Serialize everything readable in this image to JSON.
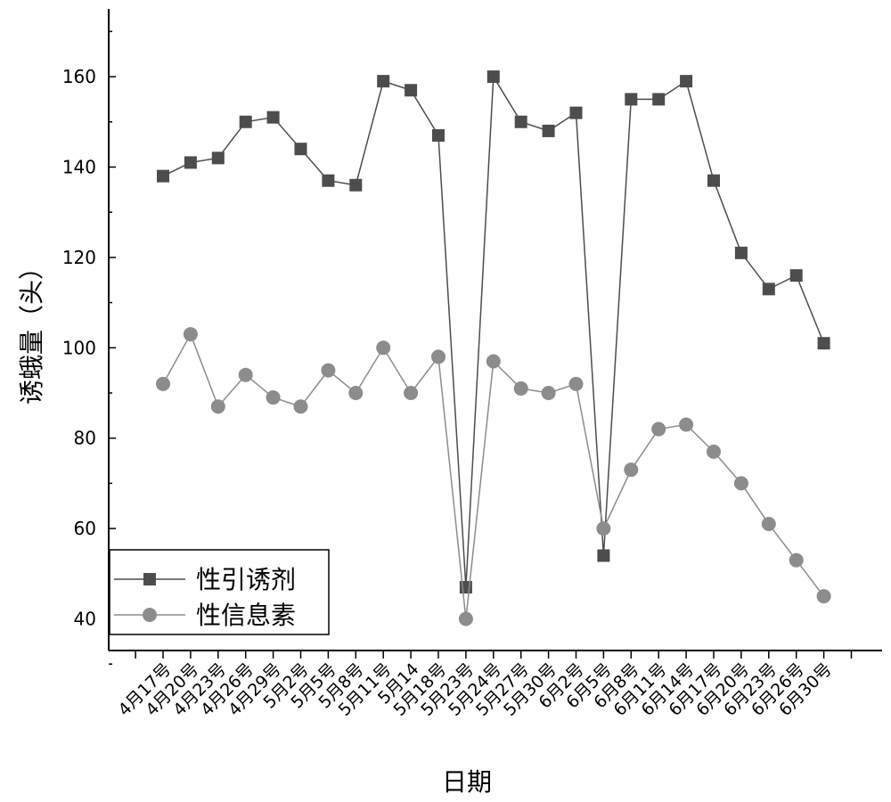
{
  "chart_data": {
    "type": "line",
    "xlabel": "日期",
    "ylabel": "诱蛾量（头）",
    "ylim": [
      33,
      175
    ],
    "yticks": [
      40,
      60,
      80,
      100,
      120,
      140,
      160
    ],
    "categories": [
      "4月17号",
      "4月20号",
      "4月23号",
      "4月26号",
      "4月29号",
      "5月2号",
      "5月5号",
      "5月8号",
      "5月11号",
      "5月14",
      "5月18号",
      "5月23号",
      "5月24号",
      "5月27号",
      "5月30号",
      "6月2号",
      "6月5号",
      "6月8号",
      "6月11号",
      "6月14号",
      "6月17号",
      "6月20号",
      "6月23号",
      "6月26号",
      "6月30号"
    ],
    "series": [
      {
        "name": "性引诱剂",
        "marker": "square",
        "color": "#4d4d4d",
        "values": [
          138,
          141,
          142,
          150,
          151,
          144,
          137,
          136,
          159,
          157,
          147,
          47,
          160,
          150,
          148,
          152,
          54,
          155,
          155,
          159,
          137,
          121,
          113,
          116,
          101
        ]
      },
      {
        "name": "性信息素",
        "marker": "circle",
        "color": "#8c8c8c",
        "values": [
          92,
          103,
          87,
          94,
          89,
          87,
          95,
          90,
          100,
          90,
          98,
          40,
          97,
          91,
          90,
          92,
          60,
          73,
          82,
          83,
          77,
          70,
          61,
          53,
          45
        ]
      }
    ],
    "legend_position": "bottom-left",
    "grid": false
  }
}
